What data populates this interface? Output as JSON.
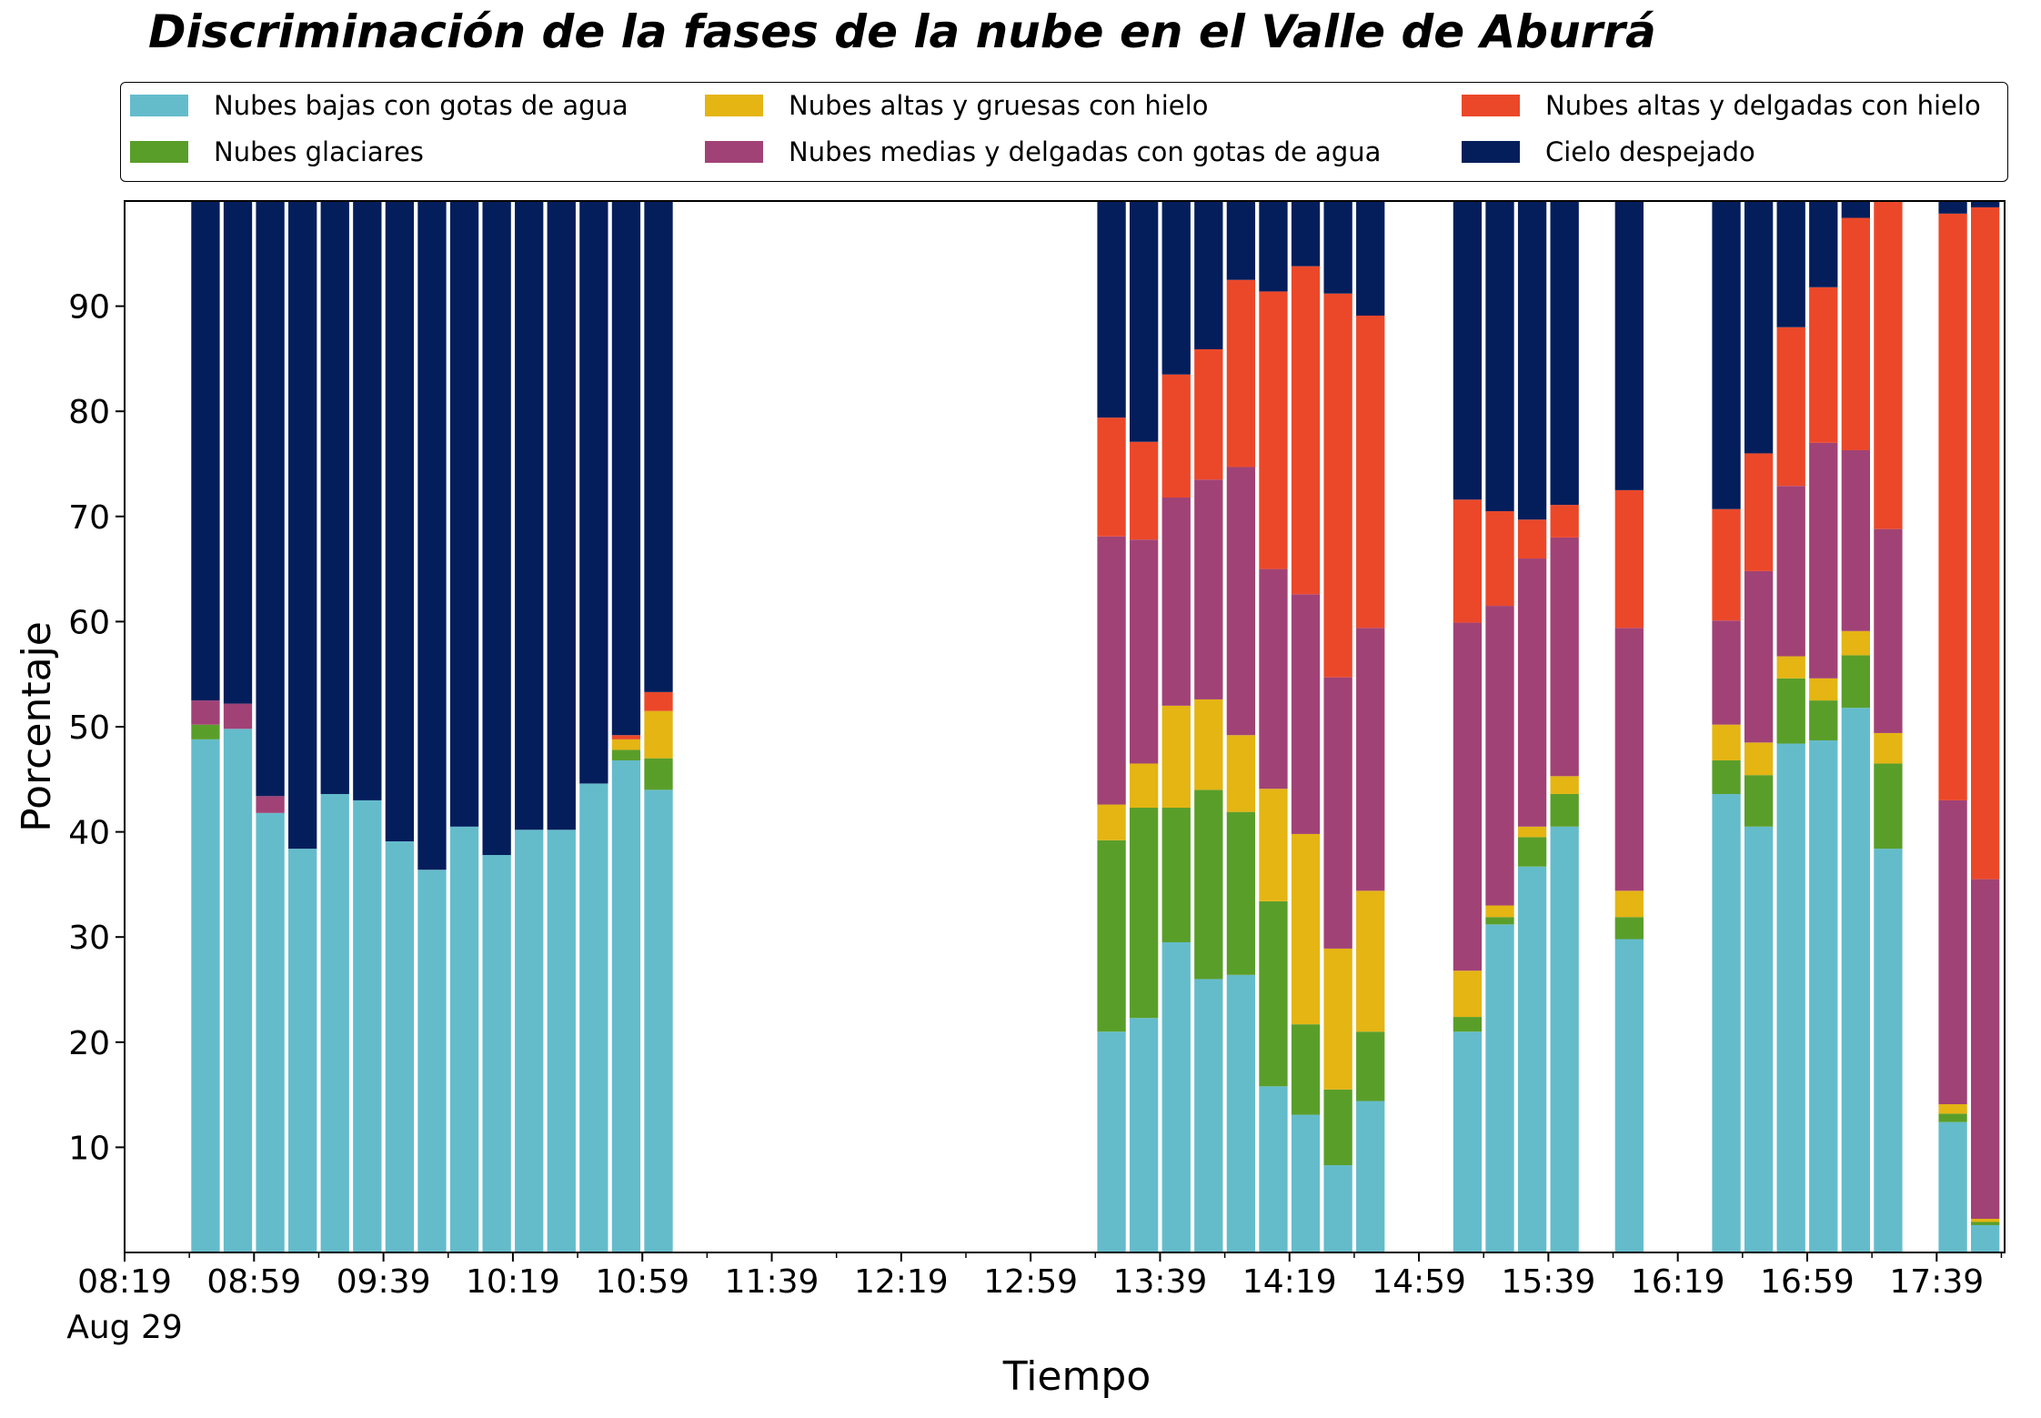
{
  "chart_data": {
    "type": "bar",
    "stacked": true,
    "title": "Discriminación de la fases de la nube en el Valle de Aburrá",
    "xlabel": "Tiempo",
    "ylabel": "Porcentaje",
    "xlim": [
      "08:19",
      "18:00"
    ],
    "ylim": [
      0,
      100
    ],
    "yticks": [
      10,
      20,
      30,
      40,
      50,
      60,
      70,
      80,
      90
    ],
    "xticks": [
      "08:19",
      "08:59",
      "09:39",
      "10:19",
      "10:59",
      "11:39",
      "12:19",
      "12:59",
      "13:39",
      "14:19",
      "14:59",
      "15:39",
      "16:19",
      "16:59",
      "17:39"
    ],
    "x_date_label": "Aug 29",
    "grid": false,
    "legend_position": "top",
    "x": [
      "08:44",
      "08:54",
      "09:04",
      "09:14",
      "09:24",
      "09:34",
      "09:44",
      "09:54",
      "10:04",
      "10:14",
      "10:24",
      "10:34",
      "10:44",
      "10:54",
      "11:04",
      "13:24",
      "13:34",
      "13:44",
      "13:54",
      "14:04",
      "14:14",
      "14:24",
      "14:34",
      "14:44",
      "15:14",
      "15:24",
      "15:34",
      "15:44",
      "16:04",
      "16:34",
      "16:44",
      "16:54",
      "17:04",
      "17:14",
      "17:24",
      "17:44",
      "17:54"
    ],
    "series": [
      {
        "name": "Nubes bajas con gotas de agua",
        "color": "#64bccb",
        "values": [
          48.8,
          49.8,
          41.8,
          38.4,
          43.6,
          43.0,
          39.1,
          36.4,
          40.5,
          37.8,
          40.2,
          40.2,
          44.6,
          46.8,
          44.0,
          21.0,
          22.3,
          29.5,
          26.0,
          26.4,
          15.8,
          13.1,
          8.3,
          14.4,
          21.0,
          31.2,
          36.7,
          40.5,
          29.8,
          43.6,
          40.5,
          48.4,
          48.7,
          51.8,
          38.4,
          12.4,
          2.6
        ]
      },
      {
        "name": "Nubes glaciares",
        "color": "#5a9e2a",
        "values": [
          1.4,
          0,
          0,
          0,
          0,
          0,
          0,
          0,
          0,
          0,
          0,
          0,
          0,
          1.0,
          3.0,
          18.2,
          20.0,
          12.8,
          18.0,
          15.5,
          17.6,
          8.6,
          7.2,
          6.6,
          1.4,
          0.7,
          2.8,
          3.1,
          2.1,
          3.2,
          4.9,
          6.2,
          3.8,
          5.0,
          8.1,
          0.8,
          0.3
        ]
      },
      {
        "name": "Nubes altas y gruesas con hielo",
        "color": "#e4b513",
        "values": [
          0,
          0,
          0,
          0,
          0,
          0,
          0,
          0,
          0,
          0,
          0,
          0,
          0,
          1.0,
          4.5,
          3.4,
          4.2,
          9.7,
          8.6,
          7.3,
          10.7,
          18.1,
          13.4,
          13.4,
          4.4,
          1.1,
          1.0,
          1.7,
          2.5,
          3.4,
          3.1,
          2.1,
          2.1,
          2.3,
          2.9,
          0.9,
          0.3
        ]
      },
      {
        "name": "Nubes medias y delgadas con gotas de agua",
        "color": "#a14276",
        "values": [
          2.3,
          2.4,
          1.6,
          0,
          0,
          0,
          0,
          0,
          0,
          0,
          0,
          0,
          0,
          0,
          0,
          25.5,
          21.3,
          19.8,
          20.9,
          25.5,
          20.9,
          22.8,
          25.8,
          25.0,
          33.1,
          28.5,
          25.5,
          22.7,
          25.0,
          9.9,
          16.3,
          16.2,
          22.4,
          17.2,
          19.4,
          28.9,
          32.3
        ]
      },
      {
        "name": "Nubes altas y delgadas con hielo",
        "color": "#eb482a",
        "values": [
          0,
          0,
          0,
          0,
          0,
          0,
          0,
          0,
          0,
          0,
          0,
          0,
          0,
          0.4,
          1.8,
          11.3,
          9.3,
          11.7,
          12.4,
          17.8,
          26.4,
          31.2,
          36.5,
          29.7,
          11.7,
          9.0,
          3.7,
          3.1,
          13.1,
          10.6,
          11.2,
          15.1,
          14.8,
          22.1,
          31.3,
          55.8,
          63.9
        ]
      },
      {
        "name": "Cielo despejado",
        "color": "#041e5c",
        "values": [
          47.5,
          47.8,
          56.6,
          61.6,
          56.4,
          57.0,
          60.9,
          63.6,
          59.5,
          62.2,
          59.8,
          59.8,
          55.4,
          50.8,
          46.7,
          20.6,
          22.9,
          16.5,
          14.1,
          7.5,
          8.6,
          6.2,
          8.8,
          10.9,
          28.4,
          29.5,
          30.3,
          28.9,
          27.5,
          29.3,
          24.0,
          12.0,
          8.2,
          1.6,
          0,
          1.2,
          0.6
        ]
      }
    ]
  }
}
